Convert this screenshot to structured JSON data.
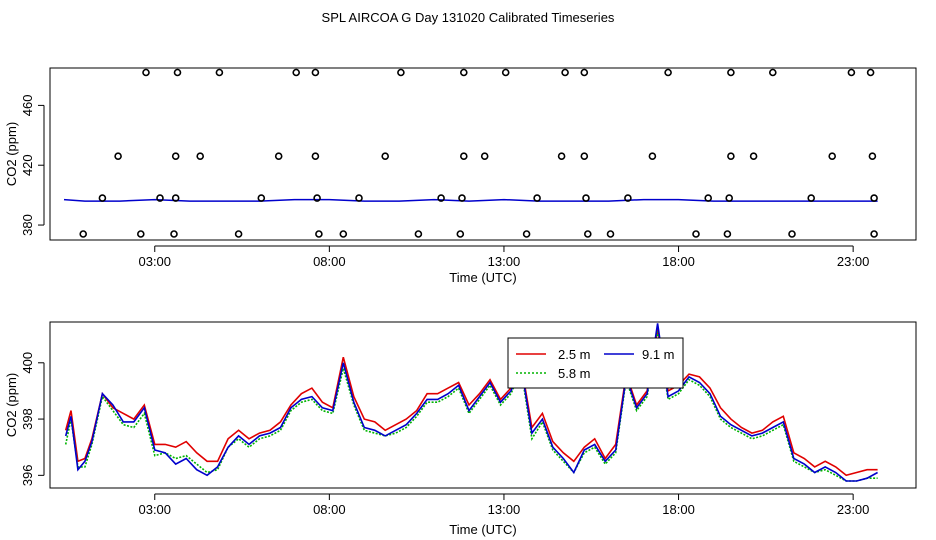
{
  "title": "SPL AIRCOA G  Day 131020  Calibrated Timeseries",
  "colors": {
    "red": "#e00000",
    "green": "#00b400",
    "blue": "#0000cc",
    "axis": "#000000"
  },
  "chart_data": [
    {
      "type": "scatter",
      "xlabel": "Time (UTC)",
      "ylabel": "CO2 (ppm)",
      "xlim": [
        0,
        24.8
      ],
      "ylim": [
        370,
        485
      ],
      "xticks": [
        3,
        8,
        13,
        18,
        23
      ],
      "xtick_labels": [
        "03:00",
        "08:00",
        "13:00",
        "18:00",
        "23:00"
      ],
      "yticks": [
        380,
        420,
        460
      ],
      "ytick_labels": [
        "380",
        "420",
        "460"
      ],
      "points": [
        [
          2.75,
          482
        ],
        [
          3.65,
          482
        ],
        [
          4.85,
          482
        ],
        [
          7.05,
          482
        ],
        [
          7.6,
          482
        ],
        [
          10.05,
          482
        ],
        [
          11.85,
          482
        ],
        [
          13.05,
          482
        ],
        [
          14.75,
          482
        ],
        [
          15.3,
          482
        ],
        [
          17.7,
          482
        ],
        [
          19.5,
          482
        ],
        [
          20.7,
          482
        ],
        [
          22.95,
          482
        ],
        [
          23.5,
          482
        ],
        [
          1.95,
          426
        ],
        [
          3.6,
          426
        ],
        [
          4.3,
          426
        ],
        [
          6.55,
          426
        ],
        [
          7.6,
          426
        ],
        [
          9.6,
          426
        ],
        [
          11.85,
          426
        ],
        [
          12.45,
          426
        ],
        [
          14.65,
          426
        ],
        [
          15.3,
          426
        ],
        [
          17.25,
          426
        ],
        [
          19.5,
          426
        ],
        [
          20.15,
          426
        ],
        [
          22.4,
          426
        ],
        [
          23.55,
          426
        ],
        [
          1.5,
          398
        ],
        [
          3.15,
          398
        ],
        [
          3.6,
          398
        ],
        [
          6.05,
          398
        ],
        [
          7.65,
          398
        ],
        [
          8.85,
          398
        ],
        [
          11.2,
          398
        ],
        [
          11.8,
          398
        ],
        [
          13.95,
          398
        ],
        [
          15.35,
          398
        ],
        [
          16.55,
          398
        ],
        [
          18.85,
          398
        ],
        [
          19.45,
          398
        ],
        [
          21.8,
          398
        ],
        [
          23.6,
          398
        ],
        [
          0.95,
          374
        ],
        [
          2.6,
          374
        ],
        [
          3.55,
          374
        ],
        [
          5.4,
          374
        ],
        [
          7.7,
          374
        ],
        [
          8.4,
          374
        ],
        [
          10.55,
          374
        ],
        [
          11.75,
          374
        ],
        [
          13.65,
          374
        ],
        [
          15.4,
          374
        ],
        [
          16.05,
          374
        ],
        [
          18.5,
          374
        ],
        [
          19.4,
          374
        ],
        [
          21.25,
          374
        ],
        [
          23.6,
          374
        ]
      ],
      "lines": [
        {
          "color": "#0000cc",
          "x": [
            0.4,
            1.0,
            2.0,
            3.0,
            4.0,
            5.0,
            6.0,
            7.0,
            8.0,
            9.0,
            10.0,
            11.0,
            12.0,
            13.0,
            14.0,
            15.0,
            16.0,
            17.0,
            18.0,
            19.0,
            20.0,
            21.0,
            22.0,
            23.0,
            23.7
          ],
          "y": [
            397,
            396,
            396,
            397,
            396,
            396,
            396,
            397,
            397,
            396,
            396,
            397,
            396,
            397,
            396,
            396,
            396,
            397,
            397,
            396,
            396,
            396,
            396,
            396,
            396
          ]
        }
      ]
    },
    {
      "type": "line",
      "xlabel": "Time (UTC)",
      "ylabel": "CO2 (ppm)",
      "xlim": [
        0,
        24.8
      ],
      "ylim": [
        395.55,
        401.45
      ],
      "xticks": [
        3,
        8,
        13,
        18,
        23
      ],
      "xtick_labels": [
        "03:00",
        "08:00",
        "13:00",
        "18:00",
        "23:00"
      ],
      "yticks": [
        396,
        398,
        400
      ],
      "ytick_labels": [
        "396",
        "398",
        "400"
      ],
      "legend_position": "top-center",
      "x": [
        0.45,
        0.6,
        0.8,
        1.0,
        1.2,
        1.5,
        1.8,
        2.1,
        2.4,
        2.7,
        3.0,
        3.3,
        3.6,
        3.9,
        4.2,
        4.5,
        4.8,
        5.1,
        5.4,
        5.7,
        6.0,
        6.3,
        6.6,
        6.9,
        7.2,
        7.5,
        7.8,
        8.1,
        8.4,
        8.7,
        9.0,
        9.3,
        9.6,
        9.9,
        10.2,
        10.5,
        10.8,
        11.1,
        11.4,
        11.7,
        12.0,
        12.3,
        12.6,
        12.9,
        13.2,
        13.5,
        13.8,
        14.1,
        14.4,
        14.7,
        15.0,
        15.3,
        15.6,
        15.9,
        16.2,
        16.5,
        16.8,
        17.1,
        17.4,
        17.7,
        18.0,
        18.3,
        18.6,
        18.9,
        19.2,
        19.5,
        19.8,
        20.1,
        20.4,
        20.7,
        21.0,
        21.3,
        21.6,
        21.9,
        22.2,
        22.5,
        22.8,
        23.1,
        23.4,
        23.7
      ],
      "series": [
        {
          "name": "2.5 m",
          "color": "#e00000",
          "values": [
            397.6,
            398.3,
            396.5,
            396.6,
            397.3,
            398.9,
            398.4,
            398.2,
            398.0,
            398.5,
            397.1,
            397.1,
            397.0,
            397.2,
            396.8,
            396.5,
            396.5,
            397.3,
            397.6,
            397.3,
            397.5,
            397.6,
            397.9,
            398.5,
            398.9,
            399.1,
            398.6,
            398.4,
            400.2,
            398.8,
            398.0,
            397.9,
            397.6,
            397.8,
            398.0,
            398.3,
            398.9,
            398.9,
            399.1,
            399.3,
            398.5,
            398.9,
            399.4,
            398.7,
            399.1,
            399.9,
            397.7,
            398.2,
            397.2,
            396.8,
            396.5,
            397.0,
            397.3,
            396.6,
            397.1,
            399.6,
            398.5,
            399.0,
            401.2,
            399.0,
            399.2,
            399.6,
            399.5,
            399.1,
            398.4,
            398.0,
            397.7,
            397.5,
            397.6,
            397.9,
            398.1,
            396.8,
            396.6,
            396.3,
            396.5,
            396.3,
            396.0,
            396.1,
            396.2,
            396.2
          ]
        },
        {
          "name": "5.8 m",
          "color": "#00b400",
          "values": [
            397.1,
            398.0,
            396.3,
            396.3,
            397.1,
            398.8,
            398.3,
            397.8,
            397.7,
            398.2,
            396.7,
            396.8,
            396.6,
            396.7,
            396.4,
            396.1,
            396.2,
            397.0,
            397.3,
            397.0,
            397.3,
            397.4,
            397.6,
            398.3,
            398.6,
            398.7,
            398.3,
            398.2,
            399.8,
            398.5,
            397.6,
            397.5,
            397.4,
            397.5,
            397.7,
            398.1,
            398.6,
            398.6,
            398.8,
            399.1,
            398.2,
            398.7,
            399.2,
            398.5,
            398.9,
            399.7,
            397.3,
            397.9,
            396.9,
            396.5,
            396.1,
            396.8,
            397.0,
            396.4,
            396.8,
            399.4,
            398.3,
            398.8,
            401.1,
            398.7,
            398.9,
            399.4,
            399.2,
            398.8,
            398.0,
            397.7,
            397.5,
            397.3,
            397.4,
            397.6,
            397.8,
            396.5,
            396.3,
            396.1,
            396.2,
            396.0,
            395.8,
            395.8,
            395.9,
            395.9
          ]
        },
        {
          "name": "9.1 m",
          "color": "#0000cc",
          "values": [
            397.4,
            398.1,
            396.2,
            396.5,
            397.2,
            398.9,
            398.5,
            397.9,
            397.9,
            398.4,
            396.9,
            396.8,
            396.4,
            396.6,
            396.2,
            396.0,
            396.3,
            397.0,
            397.4,
            397.1,
            397.4,
            397.5,
            397.7,
            398.4,
            398.7,
            398.8,
            398.4,
            398.3,
            400.0,
            398.6,
            397.7,
            397.6,
            397.4,
            397.6,
            397.8,
            398.2,
            398.7,
            398.7,
            398.9,
            399.2,
            398.3,
            398.8,
            399.3,
            398.6,
            399.0,
            399.8,
            397.5,
            398.0,
            397.0,
            396.6,
            396.1,
            396.9,
            397.1,
            396.5,
            396.9,
            399.5,
            398.4,
            398.9,
            401.4,
            398.8,
            399.0,
            399.5,
            399.3,
            398.9,
            398.1,
            397.8,
            397.6,
            397.4,
            397.5,
            397.7,
            397.9,
            396.6,
            396.4,
            396.1,
            396.3,
            396.1,
            395.8,
            395.8,
            395.9,
            396.1
          ]
        }
      ]
    }
  ]
}
